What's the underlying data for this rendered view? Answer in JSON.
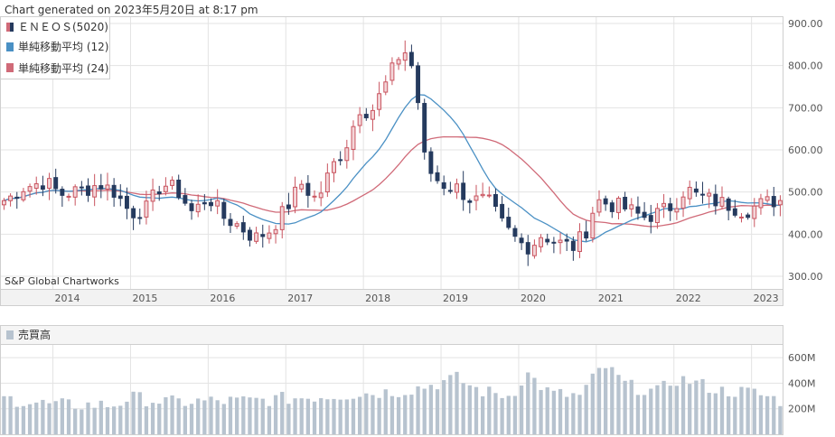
{
  "header": "Chart generated on 2023年5月20日 at 8:17 pm",
  "watermark": "S&P Global Chartworks",
  "legend": [
    {
      "label": "ＥＮＥＯＳ(5020)",
      "icon": "candle-legend-icon"
    },
    {
      "label": "単純移動平均 (12)",
      "icon": "blue-square-icon",
      "color": "#4a90c4"
    },
    {
      "label": "単純移動平均 (24)",
      "icon": "red-square-icon",
      "color": "#d06a78"
    }
  ],
  "volume_panel_label": "売買高",
  "colors": {
    "up_candle_fill": "#f3d5d8",
    "up_candle_stroke": "#c9545f",
    "down_candle": "#253a5e",
    "sma12": "#4a90c4",
    "sma24": "#d06a78",
    "volume_bar": "#b7c3cf"
  },
  "chart_data": [
    {
      "type": "candlestick",
      "title": "ＥＮＥＯＳ(5020)",
      "x_ticks": [
        "2014",
        "2015",
        "2016",
        "2017",
        "2018",
        "2019",
        "2020",
        "2021",
        "2022",
        "2023"
      ],
      "y_ticks": [
        "300.00",
        "400.00",
        "500.00",
        "600.00",
        "700.00",
        "800.00",
        "900.00"
      ],
      "ylim": [
        270,
        915
      ],
      "x_start_year": 2013.33,
      "x_end_year": 2023.4,
      "period": "monthly",
      "close_anchors": [
        [
          2013.4,
          480
        ],
        [
          2013.6,
          510
        ],
        [
          2013.9,
          525
        ],
        [
          2014.1,
          495
        ],
        [
          2014.4,
          505
        ],
        [
          2014.6,
          520
        ],
        [
          2014.8,
          500
        ],
        [
          2015.0,
          450
        ],
        [
          2015.2,
          460
        ],
        [
          2015.4,
          520
        ],
        [
          2015.6,
          505
        ],
        [
          2015.8,
          450
        ],
        [
          2016.0,
          490
        ],
        [
          2016.2,
          440
        ],
        [
          2016.4,
          420
        ],
        [
          2016.6,
          390
        ],
        [
          2016.8,
          410
        ],
        [
          2017.0,
          460
        ],
        [
          2017.2,
          520
        ],
        [
          2017.4,
          480
        ],
        [
          2017.6,
          560
        ],
        [
          2017.8,
          620
        ],
        [
          2017.95,
          700
        ],
        [
          2018.1,
          690
        ],
        [
          2018.3,
          760
        ],
        [
          2018.5,
          840
        ],
        [
          2018.6,
          820
        ],
        [
          2018.7,
          720
        ],
        [
          2018.8,
          560
        ],
        [
          2019.0,
          520
        ],
        [
          2019.2,
          510
        ],
        [
          2019.4,
          480
        ],
        [
          2019.6,
          480
        ],
        [
          2019.8,
          420
        ],
        [
          2020.0,
          380
        ],
        [
          2020.15,
          370
        ],
        [
          2020.3,
          400
        ],
        [
          2020.5,
          380
        ],
        [
          2020.7,
          370
        ],
        [
          2020.85,
          400
        ],
        [
          2021.0,
          480
        ],
        [
          2021.2,
          470
        ],
        [
          2021.4,
          460
        ],
        [
          2021.6,
          440
        ],
        [
          2021.8,
          450
        ],
        [
          2022.0,
          470
        ],
        [
          2022.15,
          510
        ],
        [
          2022.3,
          490
        ],
        [
          2022.5,
          480
        ],
        [
          2022.7,
          470
        ],
        [
          2022.9,
          455
        ],
        [
          2023.1,
          470
        ],
        [
          2023.3,
          480
        ],
        [
          2023.4,
          480
        ]
      ],
      "series": [
        {
          "name": "単純移動平均 (12)",
          "window": 12,
          "color": "#4a90c4"
        },
        {
          "name": "単純移動平均 (24)",
          "window": 24,
          "color": "#d06a78"
        }
      ]
    },
    {
      "type": "bar",
      "title": "売買高",
      "y_ticks": [
        "200M",
        "400M",
        "600M"
      ],
      "ylim": [
        0,
        700
      ],
      "volume_anchors": [
        [
          2013.4,
          280
        ],
        [
          2014.0,
          230
        ],
        [
          2014.8,
          230
        ],
        [
          2015.0,
          290
        ],
        [
          2015.5,
          250
        ],
        [
          2016.0,
          260
        ],
        [
          2016.5,
          260
        ],
        [
          2017.0,
          280
        ],
        [
          2017.5,
          300
        ],
        [
          2018.0,
          320
        ],
        [
          2018.5,
          340
        ],
        [
          2018.9,
          390
        ],
        [
          2019.2,
          440
        ],
        [
          2019.5,
          340
        ],
        [
          2019.9,
          300
        ],
        [
          2020.1,
          480
        ],
        [
          2020.4,
          320
        ],
        [
          2020.8,
          300
        ],
        [
          2021.0,
          470
        ],
        [
          2021.1,
          540
        ],
        [
          2021.4,
          380
        ],
        [
          2021.8,
          330
        ],
        [
          2022.0,
          430
        ],
        [
          2022.2,
          420
        ],
        [
          2022.6,
          340
        ],
        [
          2023.0,
          330
        ],
        [
          2023.4,
          260
        ]
      ]
    }
  ]
}
